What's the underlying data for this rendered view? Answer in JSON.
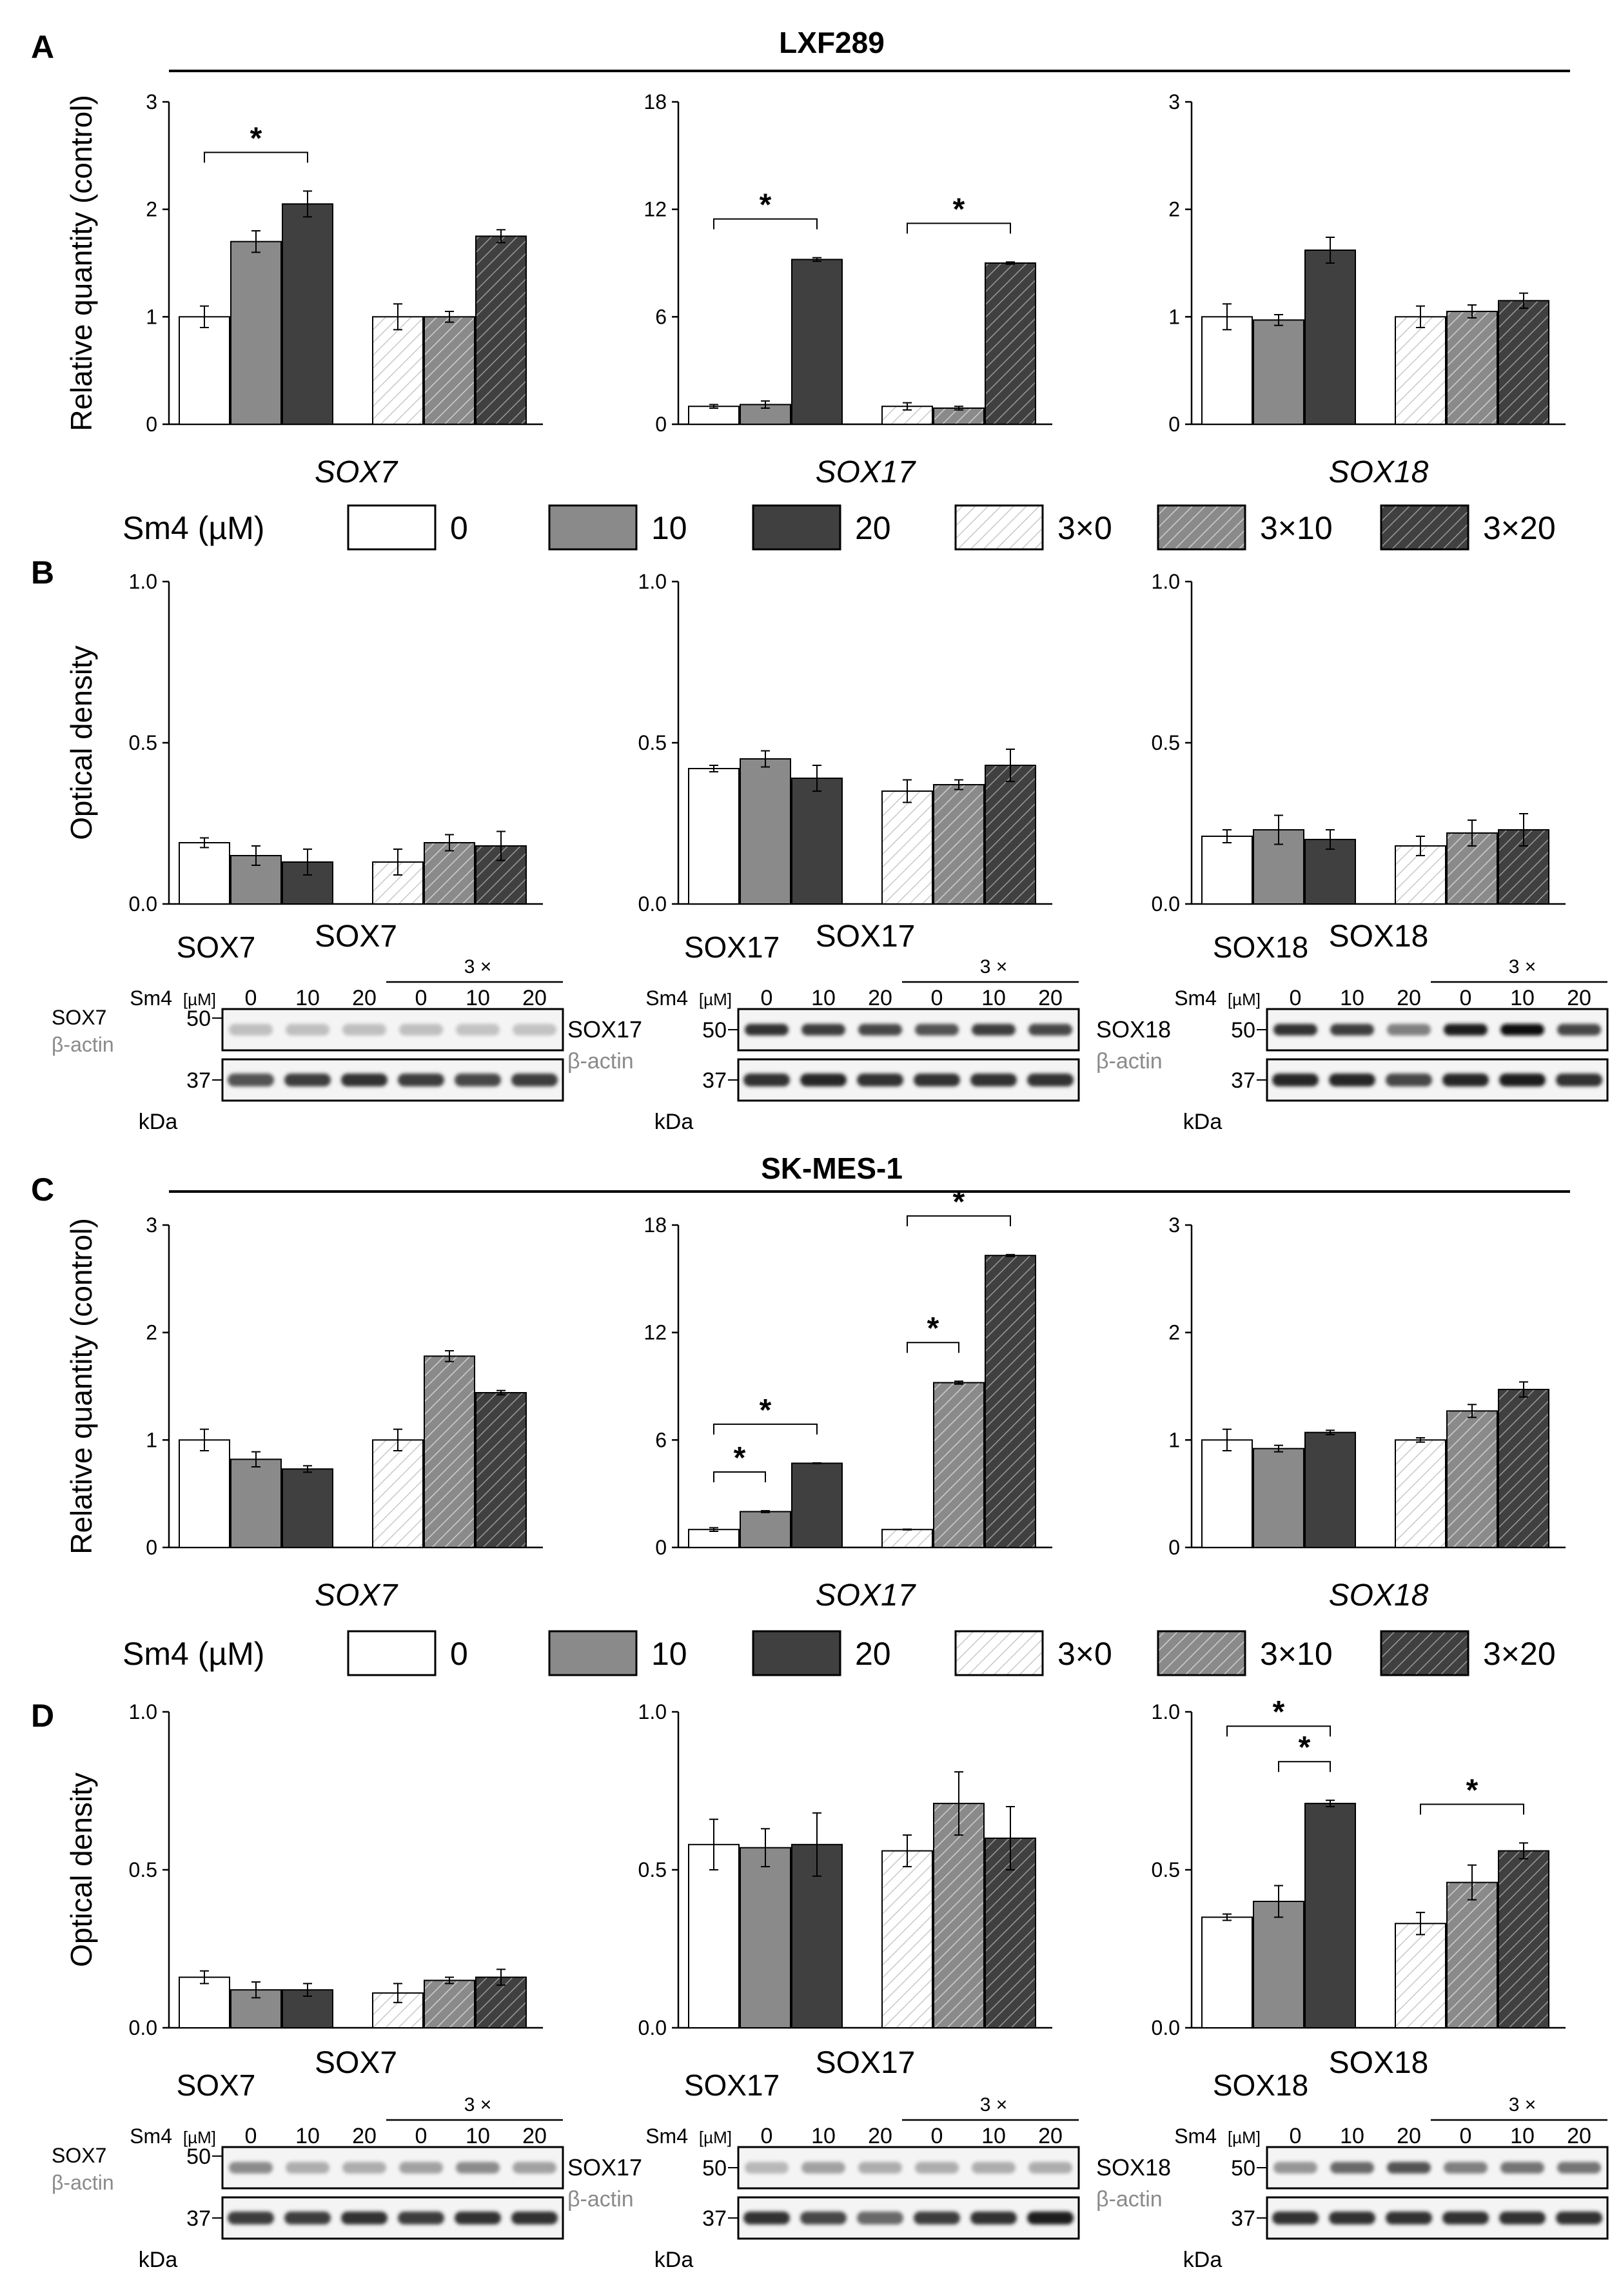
{
  "panels": {
    "A": {
      "letter": "A",
      "cell_line": "LXF289"
    },
    "B": {
      "letter": "B"
    },
    "C": {
      "letter": "C",
      "cell_line": "SK-MES-1"
    },
    "D": {
      "letter": "D"
    }
  },
  "legend": {
    "label": "Sm4 (µM)",
    "items": [
      {
        "label": "0",
        "fill": "#ffffff",
        "hatch": false
      },
      {
        "label": "10",
        "fill": "#8a8a8a",
        "hatch": false
      },
      {
        "label": "20",
        "fill": "#404040",
        "hatch": false
      },
      {
        "label": "3×0",
        "fill": "#ffffff",
        "hatch": true
      },
      {
        "label": "3×10",
        "fill": "#8a8a8a",
        "hatch": true
      },
      {
        "label": "3×20",
        "fill": "#404040",
        "hatch": true
      }
    ]
  },
  "colors": {
    "white": "#ffffff",
    "gray": "#8a8a8a",
    "dark": "#404040",
    "hatch_light": "#c8c8c8",
    "hatch_dark": "#ffffff",
    "band": "#1a1a1a"
  },
  "blot_labels": {
    "treatment": "Sm4",
    "unit": "[µM]",
    "doses": [
      "0",
      "10",
      "20",
      "0",
      "10",
      "20"
    ],
    "triple": "3 ×",
    "loading": "β-actin",
    "mw_high": "50",
    "mw_low": "37",
    "kda": "kDa"
  },
  "chart_data": [
    {
      "id": "A-SOX7",
      "panel": "A",
      "type": "bar",
      "gene": "SOX7",
      "italic": true,
      "ylabel": "Relative quantity (control)",
      "ylim": [
        0,
        3
      ],
      "yticks": [
        "0",
        "1",
        "2",
        "3"
      ],
      "categories": [
        "0",
        "10",
        "20",
        "3×0",
        "3×10",
        "3×20"
      ],
      "values": [
        1.0,
        1.7,
        2.05,
        1.0,
        1.0,
        1.75
      ],
      "errors": [
        0.1,
        0.1,
        0.12,
        0.12,
        0.05,
        0.06
      ],
      "sig": [
        {
          "from": 0,
          "to": 2,
          "label": "*"
        }
      ]
    },
    {
      "id": "A-SOX17",
      "panel": "A",
      "type": "bar",
      "gene": "SOX17",
      "italic": true,
      "ylabel": "",
      "ylim": [
        0,
        18
      ],
      "yticks": [
        "0",
        "6",
        "12",
        "18"
      ],
      "categories": [
        "0",
        "10",
        "20",
        "3×0",
        "3×10",
        "3×20"
      ],
      "values": [
        1.0,
        1.1,
        9.2,
        1.0,
        0.9,
        9.0
      ],
      "errors": [
        0.1,
        0.2,
        0.1,
        0.2,
        0.1,
        0.06
      ],
      "sig": [
        {
          "from": 0,
          "to": 2,
          "label": "*"
        },
        {
          "from": 3,
          "to": 5,
          "label": "*"
        }
      ]
    },
    {
      "id": "A-SOX18",
      "panel": "A",
      "type": "bar",
      "gene": "SOX18",
      "italic": true,
      "ylabel": "",
      "ylim": [
        0,
        3
      ],
      "yticks": [
        "0",
        "1",
        "2",
        "3"
      ],
      "categories": [
        "0",
        "10",
        "20",
        "3×0",
        "3×10",
        "3×20"
      ],
      "values": [
        1.0,
        0.97,
        1.62,
        1.0,
        1.05,
        1.15
      ],
      "errors": [
        0.12,
        0.05,
        0.12,
        0.1,
        0.06,
        0.07
      ],
      "sig": []
    },
    {
      "id": "B-SOX7",
      "panel": "B",
      "type": "bar",
      "gene": "SOX7",
      "italic": false,
      "ylabel": "Optical density",
      "ylim": [
        0,
        1
      ],
      "yticks": [
        "0.0",
        "0.5",
        "1.0"
      ],
      "categories": [
        "0",
        "10",
        "20",
        "3×0",
        "3×10",
        "3×20"
      ],
      "values": [
        0.19,
        0.15,
        0.13,
        0.13,
        0.19,
        0.18
      ],
      "errors": [
        0.015,
        0.03,
        0.04,
        0.04,
        0.025,
        0.045
      ],
      "sig": []
    },
    {
      "id": "B-SOX17",
      "panel": "B",
      "type": "bar",
      "gene": "SOX17",
      "italic": false,
      "ylabel": "",
      "ylim": [
        0,
        1
      ],
      "yticks": [
        "0.0",
        "0.5",
        "1.0"
      ],
      "categories": [
        "0",
        "10",
        "20",
        "3×0",
        "3×10",
        "3×20"
      ],
      "values": [
        0.42,
        0.45,
        0.39,
        0.35,
        0.37,
        0.43
      ],
      "errors": [
        0.01,
        0.025,
        0.04,
        0.035,
        0.015,
        0.05
      ],
      "sig": []
    },
    {
      "id": "B-SOX18",
      "panel": "B",
      "type": "bar",
      "gene": "SOX18",
      "italic": false,
      "ylabel": "",
      "ylim": [
        0,
        1
      ],
      "yticks": [
        "0.0",
        "0.5",
        "1.0"
      ],
      "categories": [
        "0",
        "10",
        "20",
        "3×0",
        "3×10",
        "3×20"
      ],
      "values": [
        0.21,
        0.23,
        0.2,
        0.18,
        0.22,
        0.23
      ],
      "errors": [
        0.02,
        0.045,
        0.03,
        0.03,
        0.04,
        0.05
      ],
      "sig": []
    },
    {
      "id": "C-SOX7",
      "panel": "C",
      "type": "bar",
      "gene": "SOX7",
      "italic": true,
      "ylabel": "Relative quantity (control)",
      "ylim": [
        0,
        3
      ],
      "yticks": [
        "0",
        "1",
        "2",
        "3"
      ],
      "categories": [
        "0",
        "10",
        "20",
        "3×0",
        "3×10",
        "3×20"
      ],
      "values": [
        1.0,
        0.82,
        0.73,
        1.0,
        1.78,
        1.44
      ],
      "errors": [
        0.1,
        0.07,
        0.03,
        0.1,
        0.05,
        0.02
      ],
      "sig": []
    },
    {
      "id": "C-SOX17",
      "panel": "C",
      "type": "bar",
      "gene": "SOX17",
      "italic": true,
      "ylabel": "",
      "ylim": [
        0,
        18
      ],
      "yticks": [
        "0",
        "6",
        "12",
        "18"
      ],
      "categories": [
        "0",
        "10",
        "20",
        "3×0",
        "3×10",
        "3×20"
      ],
      "values": [
        1.0,
        2.0,
        4.7,
        1.0,
        9.2,
        16.3
      ],
      "errors": [
        0.1,
        0.05,
        0.02,
        0.02,
        0.08,
        0.05
      ],
      "sig": [
        {
          "from": 0,
          "to": 1,
          "label": "*"
        },
        {
          "from": 0,
          "to": 2,
          "label": "*"
        },
        {
          "from": 3,
          "to": 4,
          "label": "*"
        },
        {
          "from": 3,
          "to": 5,
          "label": "*"
        }
      ]
    },
    {
      "id": "C-SOX18",
      "panel": "C",
      "type": "bar",
      "gene": "SOX18",
      "italic": true,
      "ylabel": "",
      "ylim": [
        0,
        3
      ],
      "yticks": [
        "0",
        "1",
        "2",
        "3"
      ],
      "categories": [
        "0",
        "10",
        "20",
        "3×0",
        "3×10",
        "3×20"
      ],
      "values": [
        1.0,
        0.92,
        1.07,
        1.0,
        1.27,
        1.47
      ],
      "errors": [
        0.1,
        0.03,
        0.02,
        0.02,
        0.06,
        0.07
      ],
      "sig": []
    },
    {
      "id": "D-SOX7",
      "panel": "D",
      "type": "bar",
      "gene": "SOX7",
      "italic": false,
      "ylabel": "Optical density",
      "ylim": [
        0,
        1
      ],
      "yticks": [
        "0.0",
        "0.5",
        "1.0"
      ],
      "categories": [
        "0",
        "10",
        "20",
        "3×0",
        "3×10",
        "3×20"
      ],
      "values": [
        0.16,
        0.12,
        0.12,
        0.11,
        0.15,
        0.16
      ],
      "errors": [
        0.02,
        0.025,
        0.02,
        0.03,
        0.01,
        0.025
      ],
      "sig": []
    },
    {
      "id": "D-SOX17",
      "panel": "D",
      "type": "bar",
      "gene": "SOX17",
      "italic": false,
      "ylabel": "",
      "ylim": [
        0,
        1
      ],
      "yticks": [
        "0.0",
        "0.5",
        "1.0"
      ],
      "categories": [
        "0",
        "10",
        "20",
        "3×0",
        "3×10",
        "3×20"
      ],
      "values": [
        0.58,
        0.57,
        0.58,
        0.56,
        0.71,
        0.6
      ],
      "errors": [
        0.08,
        0.06,
        0.1,
        0.05,
        0.1,
        0.1
      ],
      "sig": []
    },
    {
      "id": "D-SOX18",
      "panel": "D",
      "type": "bar",
      "gene": "SOX18",
      "italic": false,
      "ylabel": "",
      "ylim": [
        0,
        1
      ],
      "yticks": [
        "0.0",
        "0.5",
        "1.0"
      ],
      "categories": [
        "0",
        "10",
        "20",
        "3×0",
        "3×10",
        "3×20"
      ],
      "values": [
        0.35,
        0.4,
        0.71,
        0.33,
        0.46,
        0.56
      ],
      "errors": [
        0.01,
        0.05,
        0.01,
        0.035,
        0.055,
        0.025
      ],
      "sig": [
        {
          "from": 0,
          "to": 2,
          "label": "*"
        },
        {
          "from": 1,
          "to": 2,
          "label": "*"
        },
        {
          "from": 3,
          "to": 5,
          "label": "*"
        }
      ]
    }
  ],
  "blots": [
    {
      "id": "B-SOX7",
      "target": "SOX7",
      "label_mode": "stacked",
      "intensities_top": [
        0.22,
        0.22,
        0.22,
        0.22,
        0.2,
        0.2
      ],
      "intensities_bottom": [
        0.7,
        0.8,
        0.85,
        0.8,
        0.75,
        0.8
      ]
    },
    {
      "id": "B-SOX17",
      "target": "SOX17",
      "label_mode": "split",
      "intensities_top": [
        0.85,
        0.8,
        0.75,
        0.7,
        0.8,
        0.75
      ],
      "intensities_bottom": [
        0.85,
        0.9,
        0.85,
        0.85,
        0.85,
        0.85
      ]
    },
    {
      "id": "B-SOX18",
      "target": "SOX18",
      "label_mode": "split",
      "intensities_top": [
        0.85,
        0.8,
        0.5,
        0.95,
        1.0,
        0.75
      ],
      "intensities_bottom": [
        0.9,
        0.9,
        0.75,
        0.9,
        0.95,
        0.85
      ]
    },
    {
      "id": "D-SOX7",
      "target": "SOX7",
      "label_mode": "stacked",
      "intensities_top": [
        0.45,
        0.3,
        0.3,
        0.35,
        0.45,
        0.35
      ],
      "intensities_bottom": [
        0.8,
        0.8,
        0.85,
        0.8,
        0.85,
        0.85
      ]
    },
    {
      "id": "D-SOX17",
      "target": "SOX17",
      "label_mode": "split",
      "intensities_top": [
        0.25,
        0.35,
        0.3,
        0.3,
        0.3,
        0.3
      ],
      "intensities_bottom": [
        0.85,
        0.75,
        0.6,
        0.8,
        0.85,
        0.95
      ]
    },
    {
      "id": "D-SOX18",
      "target": "SOX18",
      "label_mode": "split",
      "intensities_top": [
        0.4,
        0.6,
        0.7,
        0.5,
        0.55,
        0.55
      ],
      "intensities_bottom": [
        0.85,
        0.85,
        0.85,
        0.85,
        0.85,
        0.85
      ]
    }
  ]
}
